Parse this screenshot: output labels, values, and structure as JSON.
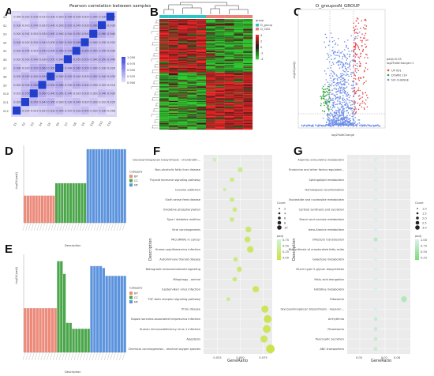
{
  "panels": {
    "a": "A",
    "b": "B",
    "c": "C",
    "d": "D",
    "e": "E",
    "f": "F",
    "g": "G"
  },
  "chart_data": [
    {
      "panel": "A",
      "type": "heatmap",
      "title": "Pearson correlation between samples",
      "samples": [
        "S1",
        "S2",
        "S3",
        "S4",
        "S5",
        "S6",
        "S7",
        "S8",
        "S9",
        "S10",
        "S11",
        "S12"
      ],
      "legend_ticks": [
        "1.000",
        "0.975",
        "0.950",
        "0.925",
        "0.900"
      ],
      "color_range": [
        0.9,
        1.0
      ],
      "values": [
        [
          0.9,
          0.92,
          0.93,
          0.91,
          0.93,
          0.92,
          0.94,
          0.93,
          0.92,
          0.94,
          0.93,
          1.0
        ],
        [
          0.93,
          0.91,
          0.94,
          0.92,
          0.94,
          0.93,
          0.95,
          0.94,
          0.93,
          0.96,
          1.0,
          0.93
        ],
        [
          0.92,
          0.93,
          0.92,
          0.93,
          0.95,
          0.94,
          0.94,
          0.95,
          0.94,
          1.0,
          0.96,
          0.94
        ],
        [
          0.94,
          0.92,
          0.93,
          0.94,
          0.93,
          0.95,
          0.95,
          0.96,
          1.0,
          0.94,
          0.93,
          0.92
        ],
        [
          0.93,
          0.94,
          0.92,
          0.95,
          0.94,
          0.96,
          0.95,
          1.0,
          0.96,
          0.95,
          0.94,
          0.93
        ],
        [
          0.92,
          0.93,
          0.94,
          0.93,
          0.95,
          0.94,
          1.0,
          0.95,
          0.95,
          0.94,
          0.95,
          0.94
        ],
        [
          0.94,
          0.92,
          0.95,
          0.96,
          0.95,
          1.0,
          0.94,
          0.96,
          0.95,
          0.94,
          0.93,
          0.92
        ],
        [
          0.93,
          0.95,
          0.94,
          0.95,
          1.0,
          0.95,
          0.95,
          0.94,
          0.93,
          0.95,
          0.94,
          0.93
        ],
        [
          0.92,
          0.94,
          0.96,
          1.0,
          0.95,
          0.96,
          0.93,
          0.95,
          0.94,
          0.93,
          0.92,
          0.91
        ],
        [
          0.91,
          0.95,
          1.0,
          0.96,
          0.94,
          0.95,
          0.94,
          0.92,
          0.93,
          0.92,
          0.94,
          0.93
        ],
        [
          0.92,
          1.0,
          0.95,
          0.94,
          0.95,
          0.92,
          0.93,
          0.94,
          0.92,
          0.93,
          0.91,
          0.92
        ],
        [
          1.0,
          0.92,
          0.91,
          0.92,
          0.93,
          0.94,
          0.92,
          0.93,
          0.94,
          0.92,
          0.93,
          0.9
        ]
      ]
    },
    {
      "panel": "B",
      "type": "heatmap",
      "legend_title": "group",
      "groups": [
        "D_group",
        "D_CKG"
      ],
      "group_colors": [
        "#27c7c9",
        "#f07f7a"
      ],
      "legend_ticks": [
        "4",
        "2",
        "0",
        "-2",
        "-4"
      ],
      "columns": 10,
      "rows": 120
    },
    {
      "panel": "C",
      "type": "scatter",
      "title": "D_groupvsN_GROUP",
      "xlabel": "log2FoldChange",
      "ylabel": "-log10(padj)",
      "legend_title": "padj<0.05\nlog2FoldChange>1",
      "legend": [
        {
          "name": "UP 001",
          "color": "#e8484a"
        },
        {
          "name": "DOWN 114",
          "color": "#34a63a"
        },
        {
          "name": "NO CHANGE",
          "color": "#6f8fe8"
        }
      ]
    },
    {
      "panel": "D",
      "type": "bar",
      "ylabel": "-log10(padj)",
      "xlabel": "Description",
      "legend_title": "Category",
      "categories_group": [
        "BP",
        "CC",
        "MF"
      ],
      "group_colors": [
        "#ef8a7a",
        "#4aa84a",
        "#5a93e0"
      ],
      "series": [
        {
          "name": "BP",
          "values": [
            0.35,
            0.35,
            0.35,
            0.35,
            0.35,
            0.35,
            0.35,
            0.35,
            0.35,
            0.35,
            0.35
          ]
        },
        {
          "name": "CC",
          "values": [
            0.51,
            0.51,
            0.51,
            0.51,
            0.51,
            0.51,
            0.51,
            0.51,
            0.51,
            0.51,
            0.51
          ]
        },
        {
          "name": "MF",
          "values": [
            0.95,
            0.95,
            0.95,
            0.95,
            0.95,
            0.95,
            0.95,
            0.95,
            0.95,
            0.95,
            0.95,
            0.95,
            0.95,
            0.95
          ]
        }
      ]
    },
    {
      "panel": "E",
      "type": "bar",
      "ylabel": "-log10(padj)",
      "xlabel": "Description",
      "legend_title": "Category",
      "categories_group": [
        "BP",
        "CC",
        "MF"
      ],
      "group_colors": [
        "#ef8a7a",
        "#4aa84a",
        "#5a93e0"
      ],
      "series": [
        {
          "name": "BP",
          "values": [
            0.45,
            0.45,
            0.45,
            0.45,
            0.45,
            0.45,
            0.45,
            0.45,
            0.45,
            0.45,
            0.45
          ]
        },
        {
          "name": "CC",
          "values": [
            0.93,
            0.93,
            0.8,
            0.3,
            0.3,
            0.24,
            0.24,
            0.24,
            0.24,
            0.24,
            0.24
          ]
        },
        {
          "name": "MF",
          "values": [
            0.88,
            0.88,
            0.88,
            0.88,
            0.86,
            0.78,
            0.78,
            0.78,
            0.78,
            0.78,
            0.78,
            0.78
          ]
        }
      ]
    },
    {
      "panel": "F",
      "type": "scatter",
      "xlabel": "GeneRatio",
      "ylabel": "Description",
      "x_ticks": [
        "0.025",
        "0.050",
        "0.075"
      ],
      "xlim": [
        0.01,
        0.085
      ],
      "size_legend_title": "Count",
      "size_legend": [
        "2",
        "4",
        "6",
        "8",
        "10"
      ],
      "color_legend_title": "padj",
      "color_legend": [
        "0.75",
        "0.50",
        "0.25",
        "0.00"
      ],
      "categories": [
        "Glycosaminoglycan biosynthesis - chondroitin...",
        "Non-alcoholic fatty liver disease",
        "Thyroid hormone signaling pathway",
        "Cocaine addiction",
        "Sixth sense feed disease",
        "Oxidative phosphorylation",
        "Type I diabetes mellitus",
        "Viral carcinogenesis",
        "MicroRNAs in cancer",
        "Human papillomavirus infection",
        "Autoimmune thyroid disease",
        "Retrograde endocannabinoid signaling",
        "Mitophagy - animal",
        "Epstein-Barr virus infection",
        "TGF-beta receptor signaling pathway",
        "Prion disease",
        "Kaposi sarcoma-associated herpesvirus infection",
        "Human immunodeficiency virus 1 infection",
        "Apoptosis",
        "Chemical carcinogenesis - reactive oxygen species"
      ],
      "x": [
        0.022,
        0.05,
        0.041,
        0.033,
        0.041,
        0.044,
        0.041,
        0.059,
        0.058,
        0.061,
        0.045,
        0.049,
        0.044,
        0.067,
        0.037,
        0.077,
        0.08,
        0.079,
        0.076,
        0.083
      ],
      "count": [
        3,
        5,
        4,
        2,
        4,
        4,
        4,
        6,
        6,
        7,
        4,
        5,
        4,
        7,
        3,
        8,
        9,
        9,
        8,
        10
      ],
      "padj": [
        0.8,
        0.6,
        0.55,
        0.7,
        0.5,
        0.45,
        0.5,
        0.35,
        0.3,
        0.25,
        0.45,
        0.4,
        0.45,
        0.25,
        0.55,
        0.2,
        0.15,
        0.2,
        0.25,
        0.1
      ]
    },
    {
      "panel": "G",
      "type": "scatter",
      "xlabel": "GeneRatio",
      "ylabel": "Description",
      "x_ticks": [
        "0.05",
        "0.07",
        "0.08"
      ],
      "xlim": [
        0.04,
        0.09
      ],
      "size_legend_title": "Count",
      "size_legend": [
        "1.0",
        "1.5",
        "2.0",
        "2.5",
        "3.0"
      ],
      "color_legend_title": "padj",
      "color_legend": [
        "1.00",
        "0.75",
        "0.50",
        "0.25"
      ],
      "categories": [
        "Arginine and proline metabolism",
        "Endocrine and other factor-regulated...",
        "Sphingolipid metabolism",
        "Homologous recombination",
        "Nucleotide and nucleoside metabolism",
        "Cortisol synthesis and secretion",
        "Starch and sucrose metabolism",
        "beta-Alanine metabolism",
        "Olfactory transduction",
        "Biosynthesis of unsaturated fatty acids",
        "Galactose metabolism",
        "Mucin type O-glycan biosynthesis",
        "Fatty acid elongation",
        "Histidine metabolism",
        "Ribosome",
        "Glycosaminoglycan biosynthesis - heparan...",
        "Arrhythmia",
        "Peroxisome",
        "Pancreatic secretion",
        "ABC transporters"
      ],
      "x": [
        0.0625,
        0.0625,
        0.0625,
        0.0625,
        0.0625,
        0.0625,
        0.0625,
        0.0625,
        0.0625,
        0.0625,
        0.0625,
        0.0625,
        0.0625,
        0.0625,
        0.085,
        0.0625,
        0.0625,
        0.0625,
        0.0625,
        0.0625
      ],
      "count": [
        1,
        1,
        1,
        1,
        1,
        1,
        1,
        1,
        1.5,
        1,
        1,
        1,
        1,
        1,
        2.5,
        1,
        1.2,
        1.2,
        1.2,
        1.2
      ],
      "padj": [
        1,
        1,
        1,
        1,
        1,
        1,
        1,
        1,
        0.7,
        1,
        1,
        1,
        1,
        1,
        0.6,
        1,
        0.8,
        0.8,
        0.8,
        0.8
      ]
    }
  ]
}
